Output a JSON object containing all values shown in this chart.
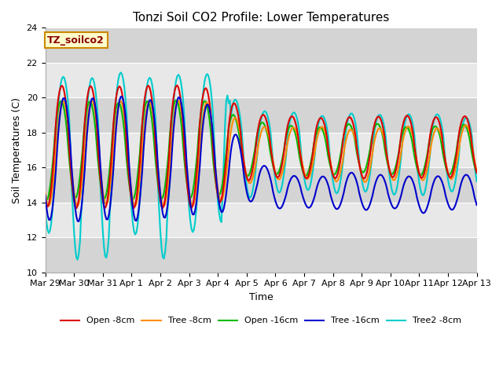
{
  "title": "Tonzi Soil CO2 Profile: Lower Temperatures",
  "xlabel": "Time",
  "ylabel": "Soil Temperatures (C)",
  "ylim": [
    10,
    24
  ],
  "annotation": "TZ_soilco2",
  "legend_labels": [
    "Open -8cm",
    "Tree -8cm",
    "Open -16cm",
    "Tree -16cm",
    "Tree2 -8cm"
  ],
  "line_colors": [
    "#dd0000",
    "#ff8c00",
    "#00bb00",
    "#0000cc",
    "#00cccc"
  ],
  "line_width": 1.5,
  "xtick_labels": [
    "Mar 29",
    "Mar 30",
    "Mar 31",
    "Apr 1",
    "Apr 2",
    "Apr 3",
    "Apr 4",
    "Apr 5",
    "Apr 6",
    "Apr 7",
    "Apr 8",
    "Apr 9",
    "Apr 10",
    "Apr 11",
    "Apr 12",
    "Apr 13"
  ],
  "background_color": "#ffffff",
  "plot_bg_color": "#e8e8e8",
  "grid_color": "#ffffff",
  "band_light": "#e8e8e8",
  "band_dark": "#d4d4d4",
  "title_fontsize": 11,
  "axis_fontsize": 9,
  "tick_fontsize": 8,
  "figsize": [
    6.4,
    4.8
  ],
  "dpi": 100
}
